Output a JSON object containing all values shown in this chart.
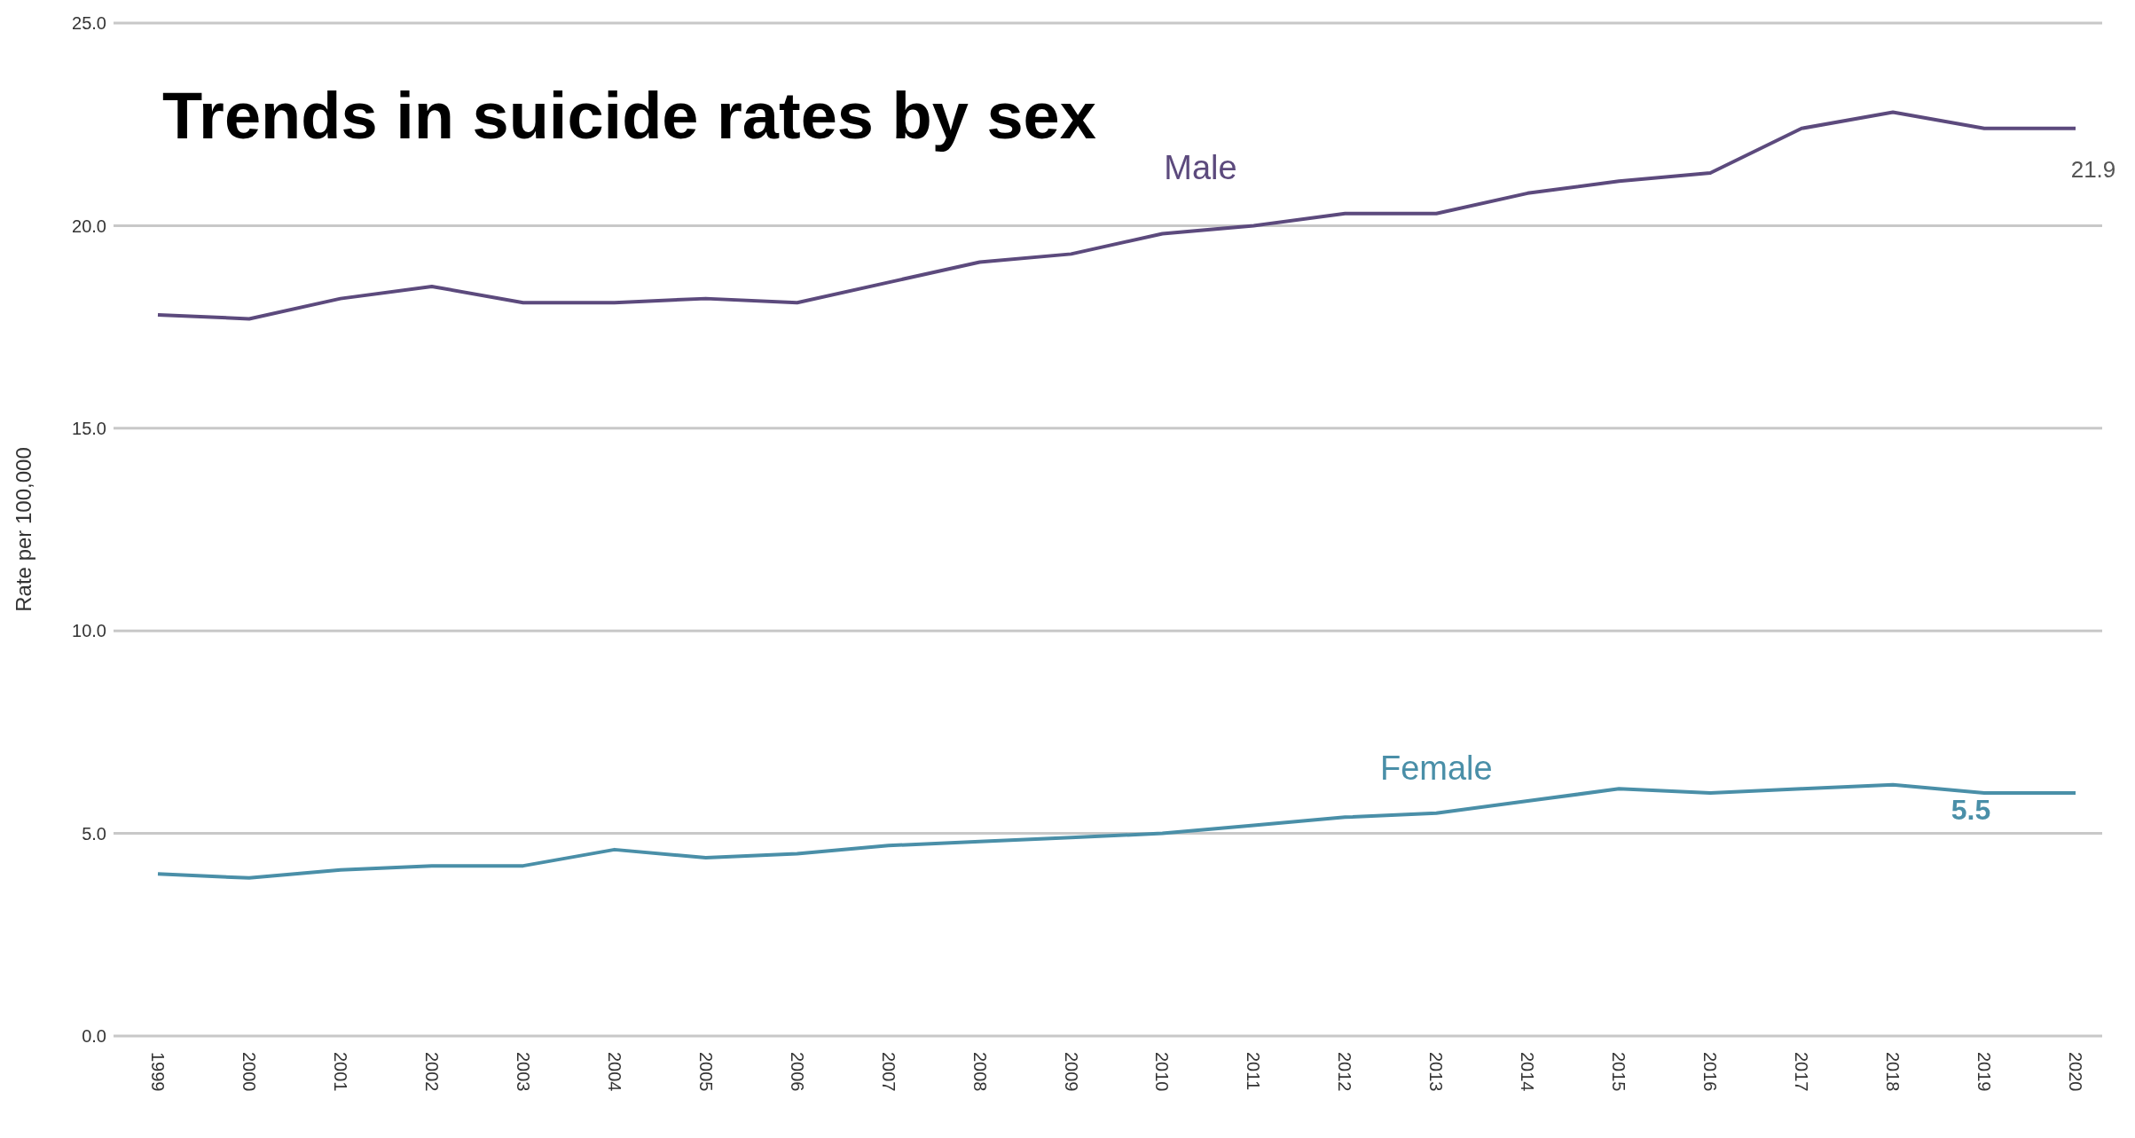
{
  "chart_data": {
    "type": "line",
    "title": "Trends in suicide rates by sex",
    "ylabel": "Rate per 100,000",
    "categories": [
      "1999",
      "2000",
      "2001",
      "2002",
      "2003",
      "2004",
      "2005",
      "2006",
      "2007",
      "2008",
      "2009",
      "2010",
      "2011",
      "2012",
      "2013",
      "2014",
      "2015",
      "2016",
      "2017",
      "2018",
      "2019",
      "2020"
    ],
    "series": [
      {
        "name": "Male",
        "color": "#5c4a7d",
        "values": [
          17.8,
          17.7,
          18.2,
          18.5,
          18.1,
          18.1,
          18.2,
          18.1,
          18.6,
          19.1,
          19.3,
          19.8,
          20.0,
          20.3,
          20.3,
          20.8,
          21.1,
          21.3,
          22.4,
          22.8,
          22.4,
          22.4
        ]
      },
      {
        "name": "Female",
        "color": "#4a8fa8",
        "values": [
          4.0,
          3.9,
          4.1,
          4.2,
          4.2,
          4.6,
          4.4,
          4.5,
          4.7,
          4.8,
          4.9,
          5.0,
          5.2,
          5.4,
          5.5,
          5.8,
          6.1,
          6.0,
          6.1,
          6.2,
          6.0,
          6.0
        ]
      }
    ],
    "annotations": [
      "21.9",
      "5.5"
    ],
    "ylim": [
      0,
      25
    ],
    "yticks": [
      {
        "value": 0,
        "label": "0.0"
      },
      {
        "value": 5,
        "label": "5.0"
      },
      {
        "value": 10,
        "label": "10.0"
      },
      {
        "value": 15,
        "label": "15.0"
      },
      {
        "value": 20,
        "label": "20.0"
      },
      {
        "value": 25,
        "label": "25.0"
      }
    ],
    "grid": "y",
    "legend": false,
    "marker": "none",
    "line_style": "solid"
  }
}
